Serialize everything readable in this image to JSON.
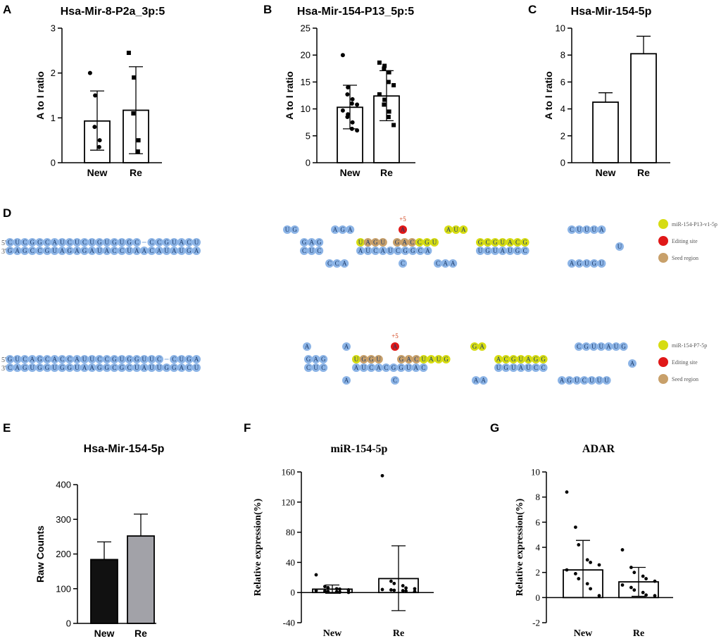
{
  "panel_letters": {
    "a": "A",
    "b": "B",
    "c": "C",
    "d": "D",
    "e": "E",
    "f": "F",
    "g": "G"
  },
  "colors": {
    "nt_blue": "#8cb4e6",
    "mirna_yellow": "#d6dc12",
    "edit_red": "#e01818",
    "seed_tan": "#c8a06a",
    "bar_black": "#111111",
    "bar_gray": "#a2a2a8"
  },
  "chart_data": [
    {
      "id": "A",
      "type": "bar",
      "style": "sans",
      "title": "Hsa-Mir-8-P2a_3p:5",
      "categories": [
        "New",
        "Re"
      ],
      "values": [
        0.93,
        1.17
      ],
      "err_low": [
        0.28,
        0.2
      ],
      "err_high": [
        1.6,
        2.14
      ],
      "points": [
        [
          2.0,
          1.5,
          0.8,
          0.5,
          0.35
        ],
        [
          2.45,
          1.9,
          1.1,
          0.5,
          0.25
        ]
      ],
      "markers": [
        "circle",
        "square"
      ],
      "fills": [
        "#ffffff",
        "#ffffff"
      ],
      "ylim": [
        0,
        3
      ],
      "yticks": [
        "0",
        "1",
        "2",
        "3"
      ],
      "ytick_values": [
        0,
        1,
        2,
        3
      ],
      "xlabel": "",
      "ylabel": "A to I ratio"
    },
    {
      "id": "B",
      "type": "bar",
      "style": "sans",
      "title": "Hsa-Mir-154-P13_5p:5",
      "categories": [
        "New",
        "Re"
      ],
      "values": [
        10.3,
        12.4
      ],
      "err_low": [
        6.3,
        7.8
      ],
      "err_high": [
        14.4,
        17.1
      ],
      "points": [
        [
          20.0,
          14.0,
          12.7,
          11.8,
          11.0,
          10.8,
          9.7,
          9.0,
          8.5,
          7.5,
          6.3,
          6.0
        ],
        [
          18.6,
          18.0,
          17.5,
          16.8,
          15.0,
          14.4,
          12.7,
          11.7,
          10.8,
          9.5,
          8.5,
          7.0
        ]
      ],
      "markers": [
        "circle",
        "square"
      ],
      "fills": [
        "#ffffff",
        "#ffffff"
      ],
      "ylim": [
        0,
        25
      ],
      "yticks": [
        "0",
        "5",
        "10",
        "15",
        "20",
        "25"
      ],
      "ytick_values": [
        0,
        5,
        10,
        15,
        20,
        25
      ],
      "xlabel": "",
      "ylabel": "A to I ratio"
    },
    {
      "id": "C",
      "type": "bar",
      "style": "sans",
      "title": "Hsa-Mir-154-5p",
      "categories": [
        "New",
        "Re"
      ],
      "values": [
        4.5,
        8.1
      ],
      "err_low": [
        4.5,
        8.1
      ],
      "err_high": [
        5.2,
        9.4
      ],
      "points": [
        [],
        []
      ],
      "markers": [
        "circle",
        "square"
      ],
      "fills": [
        "#ffffff",
        "#ffffff"
      ],
      "ylim": [
        0,
        10
      ],
      "yticks": [
        "0",
        "2",
        "4",
        "6",
        "8",
        "10"
      ],
      "ytick_values": [
        0,
        2,
        4,
        6,
        8,
        10
      ],
      "xlabel": "",
      "ylabel": "A to I ratio"
    },
    {
      "id": "E",
      "type": "bar",
      "style": "sans",
      "title": "Hsa-Mir-154-5p",
      "categories": [
        "New",
        "Re"
      ],
      "values": [
        184,
        252
      ],
      "err_low": [
        184,
        252
      ],
      "err_high": [
        235,
        315
      ],
      "points": [
        [],
        []
      ],
      "markers": [
        "circle",
        "square"
      ],
      "fills": [
        "#111111",
        "#a2a2a8"
      ],
      "ylim": [
        0,
        400
      ],
      "yticks": [
        "0",
        "100",
        "200",
        "300",
        "400"
      ],
      "ytick_values": [
        0,
        100,
        200,
        300,
        400
      ],
      "xlabel": "",
      "ylabel": "Raw Counts"
    },
    {
      "id": "F",
      "type": "bar",
      "style": "serif",
      "title": "miR-154-5p",
      "categories": [
        "New",
        "Re"
      ],
      "values": [
        4.5,
        18.5
      ],
      "err_low": [
        -1.0,
        -24.0
      ],
      "err_high": [
        10.0,
        62.0
      ],
      "points": [
        [
          23.5,
          8.0,
          6.5,
          5.0,
          4.5,
          3.5,
          2.5,
          2.0,
          1.5,
          1.0,
          0.5,
          0.2
        ],
        [
          155.0,
          15.0,
          12.0,
          9.0,
          6.0,
          5.0,
          4.0,
          3.5,
          3.0,
          2.5,
          2.0,
          1.5
        ]
      ],
      "markers": [
        "circle",
        "circle"
      ],
      "fills": [
        "#ffffff",
        "#ffffff"
      ],
      "ylim": [
        -40,
        160
      ],
      "yticks": [
        "-40",
        "0",
        "40",
        "80",
        "120",
        "160"
      ],
      "ytick_values": [
        -40,
        0,
        40,
        80,
        120,
        160
      ],
      "xlabel": "",
      "ylabel": "Relative expression(%)"
    },
    {
      "id": "G",
      "type": "bar",
      "style": "serif",
      "title": "ADAR",
      "categories": [
        "New",
        "Re"
      ],
      "values": [
        2.2,
        1.25
      ],
      "err_low": [
        0.0,
        0.1
      ],
      "err_high": [
        4.55,
        2.4
      ],
      "points": [
        [
          8.4,
          5.6,
          4.2,
          3.0,
          2.8,
          2.6,
          2.2,
          1.9,
          1.5,
          1.1,
          0.7,
          0.15
        ],
        [
          3.8,
          2.4,
          2.0,
          1.7,
          1.5,
          1.3,
          1.0,
          0.8,
          0.6,
          0.4,
          0.2,
          0.15
        ]
      ],
      "markers": [
        "circle",
        "circle"
      ],
      "fills": [
        "#ffffff",
        "#ffffff"
      ],
      "ylim": [
        -2,
        10
      ],
      "yticks": [
        "-2",
        "0",
        "2",
        "4",
        "6",
        "8",
        "10"
      ],
      "ytick_values": [
        -2,
        0,
        2,
        4,
        6,
        8,
        10
      ],
      "xlabel": "",
      "ylabel": "Relative expression(%)"
    }
  ],
  "hairpins": [
    {
      "id": "hairpin1",
      "five_label": "5'",
      "three_label": "3'",
      "plus_label": "+5",
      "top_stem": "CUCGGCAUCUCUGUGUGC-CCGUACU",
      "bottom_stem": "GAGCCGUAGAGAUACCUAACAUAUGA",
      "loop_top": "UG",
      "top_seq2": "GAG",
      "top_bulge2": "AGA",
      "bottom_seq2": "CUC",
      "bottom_loop1": "CCA",
      "top_yellow": "UAGU",
      "top_yellow2": "GACCGU",
      "seed_note": "",
      "top_bulge3": "AUA",
      "top_yellow3": "GCGUACG",
      "top_end": "CUUUA",
      "bottom_mid": "AUCAUCGGCA",
      "bottom_bulge3": "CAA",
      "bottom_mid2": "UGUAUGC",
      "bottom_end": "AGUGU",
      "bottom_c": "C",
      "loop_end": "U",
      "legend": [
        "miR-154-P13-v1-5p",
        "Editing site",
        "Seed region"
      ]
    },
    {
      "id": "hairpin2",
      "five_label": "5'",
      "three_label": "3'",
      "plus_label": "+5",
      "top_stem": "GUCAGCACCAUUCCGUGGUUC-CUGA",
      "bottom_stem": "CAGUGGUGGUAAGGCGCUAUUGGACU",
      "top_seq2": "GAG",
      "top_a1": "A",
      "top_a2": "A",
      "bottom_seq2": "CUC",
      "bottom_a1": "A",
      "top_yellow": "UGGU",
      "top_yellow2": "GACUAUG",
      "top_bulge3": "GA",
      "top_yellow3": "ACGUAGG",
      "top_end": "CGUUAUG",
      "bottom_mid": "AUCACGGUAC",
      "bottom_bulge3": "AA",
      "bottom_mid2": "UGUAUCC",
      "bottom_end": "AGUCUUU",
      "bottom_c": "C",
      "loop_end": "A",
      "legend": [
        "miR-154-P7-5p",
        "Editing site",
        "Seed region"
      ]
    }
  ]
}
